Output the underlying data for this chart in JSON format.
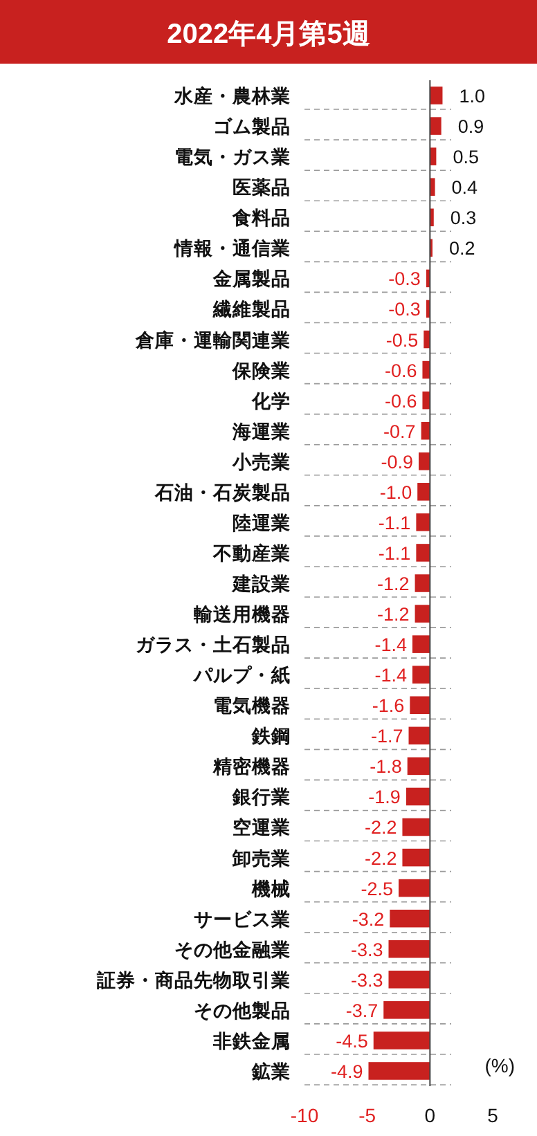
{
  "chart_data": {
    "type": "bar",
    "orientation": "horizontal",
    "title": "2022年4月第5週",
    "categories": [
      "水産・農林業",
      "ゴム製品",
      "電気・ガス業",
      "医薬品",
      "食料品",
      "情報・通信業",
      "金属製品",
      "繊維製品",
      "倉庫・運輸関連業",
      "保険業",
      "化学",
      "海運業",
      "小売業",
      "石油・石炭製品",
      "陸運業",
      "不動産業",
      "建設業",
      "輸送用機器",
      "ガラス・土石製品",
      "パルプ・紙",
      "電気機器",
      "鉄鋼",
      "精密機器",
      "銀行業",
      "空運業",
      "卸売業",
      "機械",
      "サービス業",
      "その他金融業",
      "証券・商品先物取引業",
      "その他製品",
      "非鉄金属",
      "鉱業"
    ],
    "values": [
      1.0,
      0.9,
      0.5,
      0.4,
      0.3,
      0.2,
      -0.3,
      -0.3,
      -0.5,
      -0.6,
      -0.6,
      -0.7,
      -0.9,
      -1.0,
      -1.1,
      -1.1,
      -1.2,
      -1.2,
      -1.4,
      -1.4,
      -1.6,
      -1.7,
      -1.8,
      -1.9,
      -2.2,
      -2.2,
      -2.5,
      -3.2,
      -3.3,
      -3.3,
      -3.7,
      -4.5,
      -4.9
    ],
    "value_labels": [
      "1.0",
      "0.9",
      "0.5",
      "0.4",
      "0.3",
      "0.2",
      "-0.3",
      "-0.3",
      "-0.5",
      "-0.6",
      "-0.6",
      "-0.7",
      "-0.9",
      "-1.0",
      "-1.1",
      "-1.1",
      "-1.2",
      "-1.2",
      "-1.4",
      "-1.4",
      "-1.6",
      "-1.7",
      "-1.8",
      "-1.9",
      "-2.2",
      "-2.2",
      "-2.5",
      "-3.2",
      "-3.3",
      "-3.3",
      "-3.7",
      "-4.5",
      "-4.9"
    ],
    "color": "#c8211f",
    "xlim": [
      -10,
      5
    ],
    "xticks": [
      -10,
      -5,
      0,
      5
    ],
    "grid": "y",
    "annotations": [
      "(%)"
    ]
  }
}
